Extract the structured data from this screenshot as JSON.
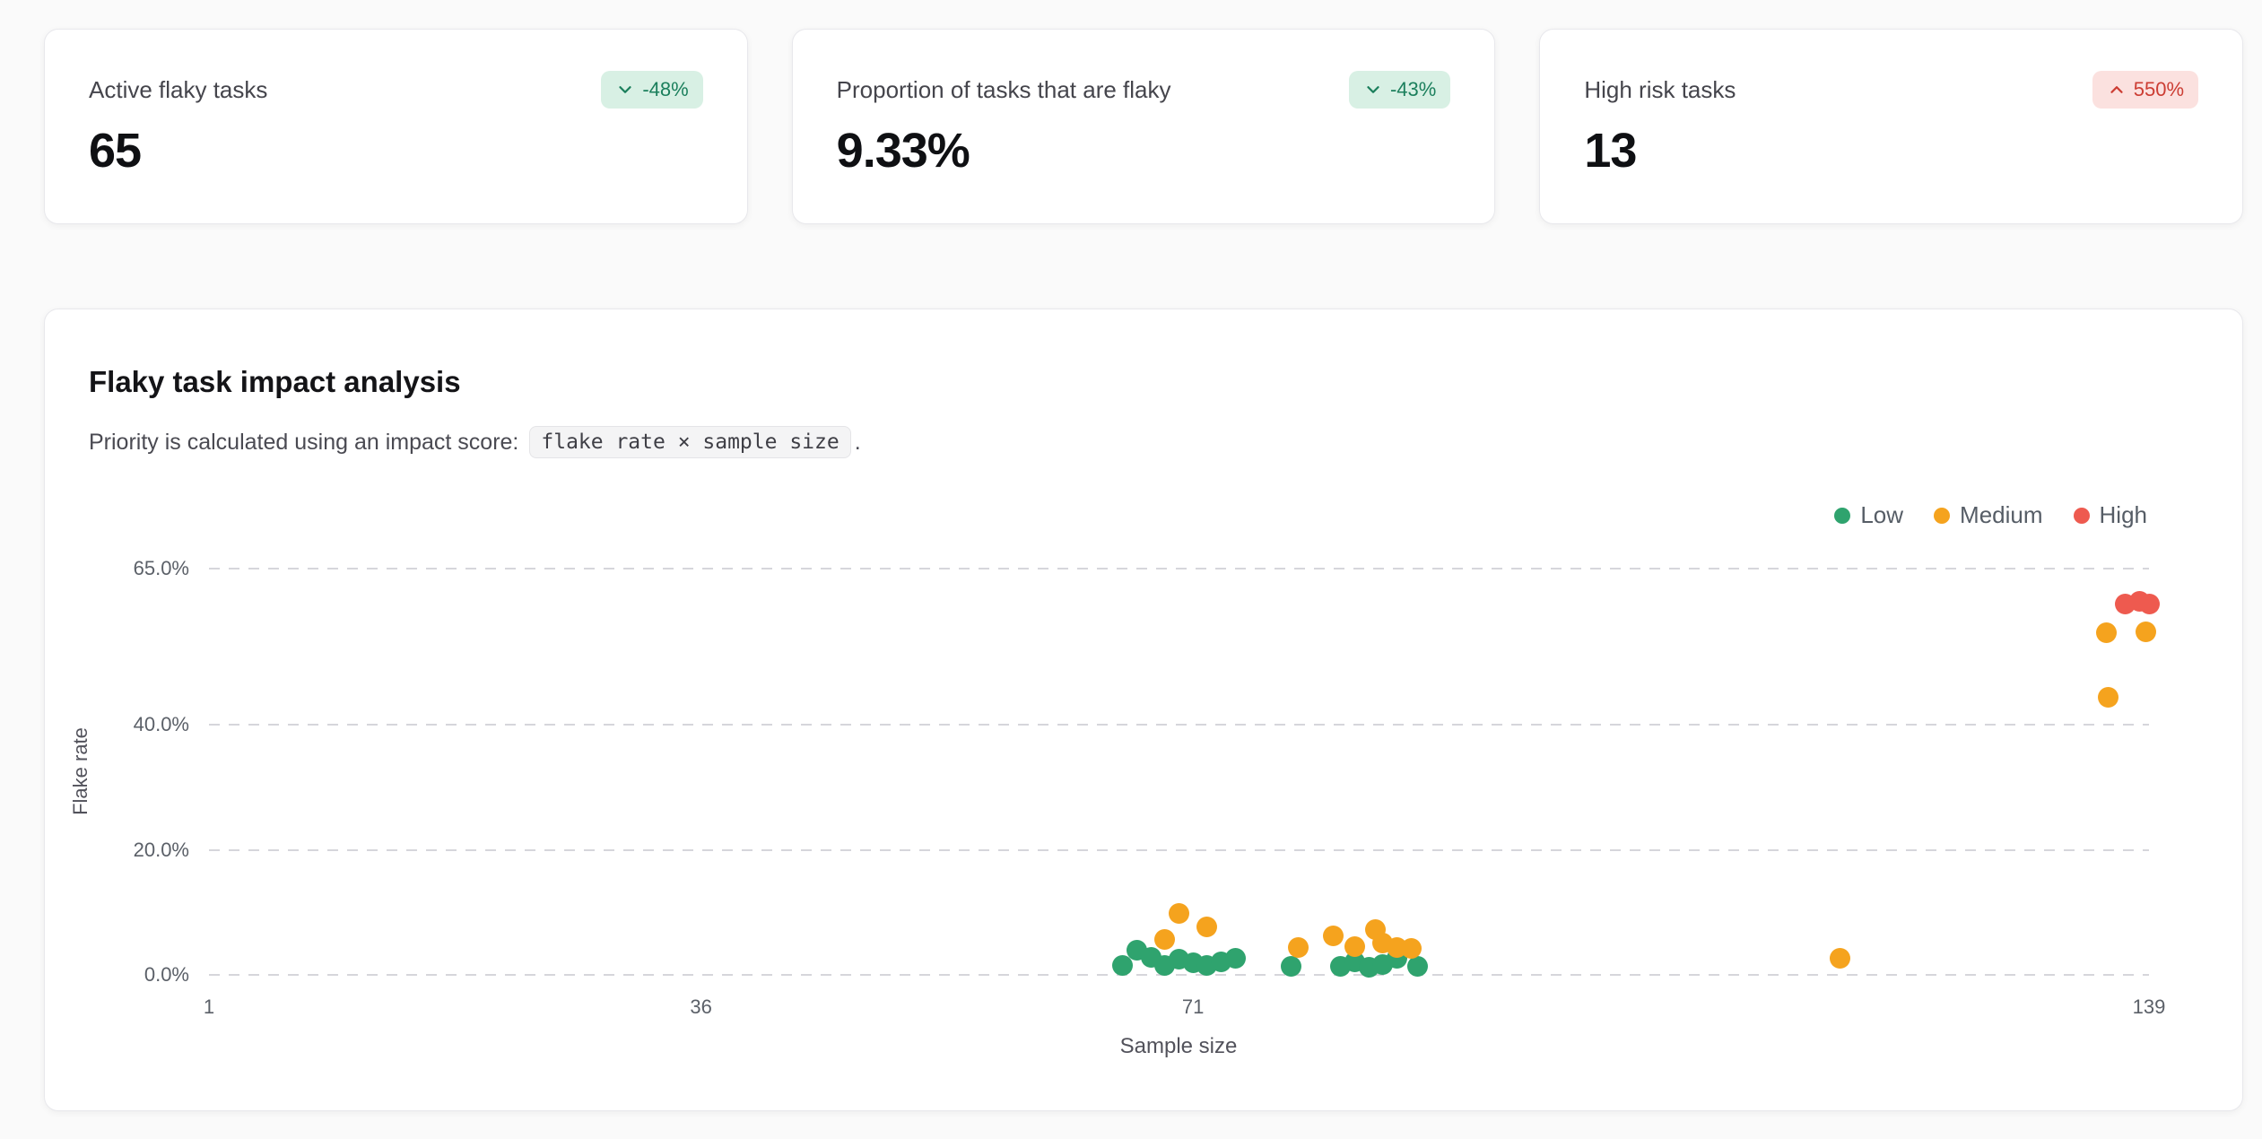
{
  "theme": {
    "positive_badge_bg": "#d8f0e4",
    "positive_badge_text": "#1b7f5c",
    "negative_badge_bg": "#fbe1df",
    "negative_badge_text": "#cc3d33",
    "low_color": "#2fa36e",
    "medium_color": "#f5a31e",
    "high_color": "#ee5a4f"
  },
  "stats": [
    {
      "label": "Active flaky tasks",
      "value": "65",
      "delta": "-48%",
      "direction": "down",
      "tone": "positive"
    },
    {
      "label": "Proportion of tasks that are flaky",
      "value": "9.33%",
      "delta": "-43%",
      "direction": "down",
      "tone": "positive"
    },
    {
      "label": "High risk tasks",
      "value": "13",
      "delta": "550%",
      "direction": "up",
      "tone": "negative"
    }
  ],
  "analysis": {
    "title": "Flaky task impact analysis",
    "description_prefix": "Priority is calculated using an impact score:",
    "formula": "flake rate × sample size",
    "description_suffix": "."
  },
  "chart_data": {
    "type": "scatter",
    "title": "Flaky task impact analysis",
    "xlabel": "Sample size",
    "ylabel": "Flake rate",
    "xlim": [
      1,
      139
    ],
    "ylim_pct": [
      0,
      65
    ],
    "x_ticks": [
      1,
      36,
      71,
      139
    ],
    "y_ticks_pct": [
      0,
      20,
      40,
      65
    ],
    "y_tick_labels": [
      "0.0%",
      "20.0%",
      "40.0%",
      "65.0%"
    ],
    "grid": "dashed-horizontal",
    "legend_position": "top-right",
    "legend": [
      {
        "name": "Low",
        "color": "#2fa36e"
      },
      {
        "name": "Medium",
        "color": "#f5a31e"
      },
      {
        "name": "High",
        "color": "#ee5a4f"
      }
    ],
    "series": [
      {
        "name": "Low",
        "color": "#2fa36e",
        "points": [
          [
            66,
            1.5
          ],
          [
            67,
            3.9
          ],
          [
            68,
            2.8
          ],
          [
            69,
            1.5
          ],
          [
            70,
            2.5
          ],
          [
            71,
            1.9
          ],
          [
            72,
            1.5
          ],
          [
            73,
            2.1
          ],
          [
            74,
            2.6
          ],
          [
            78,
            1.4
          ],
          [
            81.5,
            1.4
          ],
          [
            82.5,
            2.1
          ],
          [
            83.5,
            1.2
          ],
          [
            84.5,
            1.6
          ],
          [
            85.5,
            2.6
          ],
          [
            87,
            1.4
          ]
        ]
      },
      {
        "name": "Medium",
        "color": "#f5a31e",
        "points": [
          [
            69,
            5.6
          ],
          [
            70,
            9.8
          ],
          [
            72,
            7.7
          ],
          [
            78.5,
            4.4
          ],
          [
            81,
            6.3
          ],
          [
            82.5,
            4.5
          ],
          [
            84,
            7.2
          ],
          [
            84.5,
            5.1
          ],
          [
            85.5,
            4.4
          ],
          [
            86.5,
            4.2
          ],
          [
            117,
            2.6
          ],
          [
            136,
            54.7
          ],
          [
            138.8,
            54.9
          ],
          [
            136.1,
            44.4
          ]
        ]
      },
      {
        "name": "High",
        "color": "#ee5a4f",
        "points": [
          [
            137.3,
            59.3
          ],
          [
            138.3,
            59.8
          ],
          [
            139,
            59.3
          ]
        ]
      }
    ]
  }
}
